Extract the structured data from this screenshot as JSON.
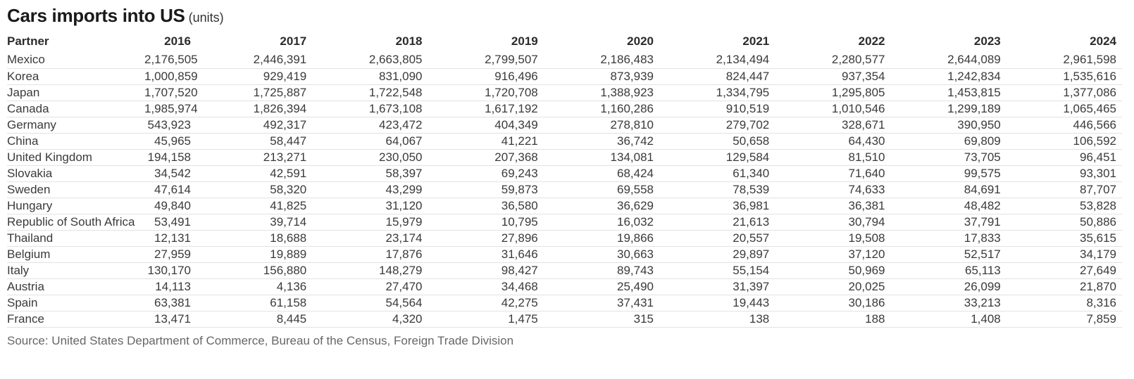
{
  "title": {
    "text": "Cars imports into US",
    "unit_label": "(units)"
  },
  "source_note": "Source: United States Department of Commerce, Bureau of the Census, Foreign Trade Division",
  "colors": {
    "title_text": "#1a1a1a",
    "body_text": "#3a3a3a",
    "header_text": "#2b2b2b",
    "row_divider": "#e2e2e2",
    "source_text": "#666666",
    "background": "#ffffff"
  },
  "chart_data": {
    "type": "table",
    "title": "Cars imports into US",
    "unit": "units",
    "columns": [
      "Partner",
      "2016",
      "2017",
      "2018",
      "2019",
      "2020",
      "2021",
      "2022",
      "2023",
      "2024"
    ],
    "rows": [
      [
        "Mexico",
        2176505,
        2446391,
        2663805,
        2799507,
        2186483,
        2134494,
        2280577,
        2644089,
        2961598
      ],
      [
        "Korea",
        1000859,
        929419,
        831090,
        916496,
        873939,
        824447,
        937354,
        1242834,
        1535616
      ],
      [
        "Japan",
        1707520,
        1725887,
        1722548,
        1720708,
        1388923,
        1334795,
        1295805,
        1453815,
        1377086
      ],
      [
        "Canada",
        1985974,
        1826394,
        1673108,
        1617192,
        1160286,
        910519,
        1010546,
        1299189,
        1065465
      ],
      [
        "Germany",
        543923,
        492317,
        423472,
        404349,
        278810,
        279702,
        328671,
        390950,
        446566
      ],
      [
        "China",
        45965,
        58447,
        64067,
        41221,
        36742,
        50658,
        64430,
        69809,
        106592
      ],
      [
        "United Kingdom",
        194158,
        213271,
        230050,
        207368,
        134081,
        129584,
        81510,
        73705,
        96451
      ],
      [
        "Slovakia",
        34542,
        42591,
        58397,
        69243,
        68424,
        61340,
        71640,
        99575,
        93301
      ],
      [
        "Sweden",
        47614,
        58320,
        43299,
        59873,
        69558,
        78539,
        74633,
        84691,
        87707
      ],
      [
        "Hungary",
        49840,
        41825,
        31120,
        36580,
        36629,
        36981,
        36381,
        48482,
        53828
      ],
      [
        "Republic of South Africa",
        53491,
        39714,
        15979,
        10795,
        16032,
        21613,
        30794,
        37791,
        50886
      ],
      [
        "Thailand",
        12131,
        18688,
        23174,
        27896,
        19866,
        20557,
        19508,
        17833,
        35615
      ],
      [
        "Belgium",
        27959,
        19889,
        17876,
        31646,
        30663,
        29897,
        37120,
        52517,
        34179
      ],
      [
        "Italy",
        130170,
        156880,
        148279,
        98427,
        89743,
        55154,
        50969,
        65113,
        27649
      ],
      [
        "Austria",
        14113,
        4136,
        27470,
        34468,
        25490,
        31397,
        20025,
        26099,
        21870
      ],
      [
        "Spain",
        63381,
        61158,
        54564,
        42275,
        37431,
        19443,
        30186,
        33213,
        8316
      ],
      [
        "France",
        13471,
        8445,
        4320,
        1475,
        315,
        138,
        188,
        1408,
        7859
      ]
    ],
    "source": "United States Department of Commerce, Bureau of the Census, Foreign Trade Division",
    "layout": {
      "grid": "horizontal-row-dividers",
      "value_alignment": "right",
      "header_style": "bold-no-underline"
    }
  }
}
